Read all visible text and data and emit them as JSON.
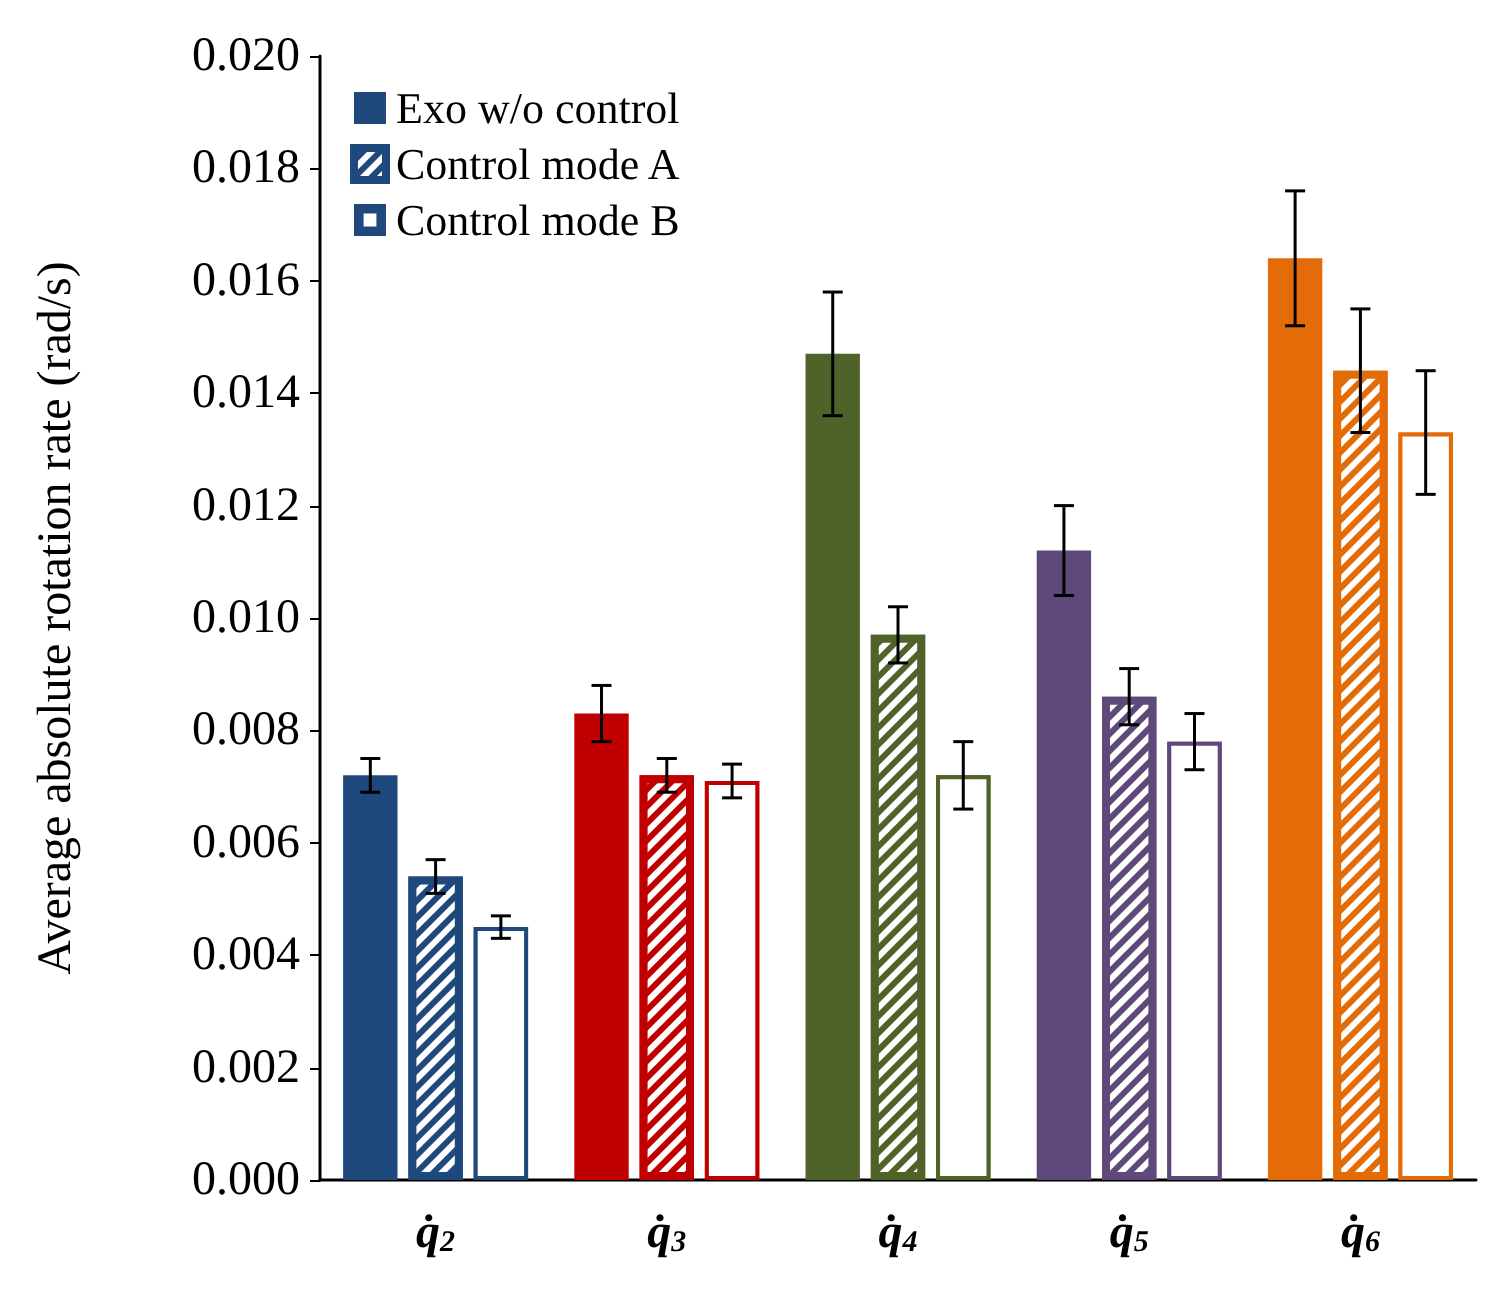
{
  "chart_data": {
    "type": "bar",
    "ylabel": "Average absolute rotation rate (rad/s)",
    "categories": [
      "q̇$_{2}$",
      "q̇$_{3}$",
      "q̇$_{4}$",
      "q̇$_{5}$",
      "q̇$_{6}$"
    ],
    "series": [
      {
        "name": "Exo w/o control",
        "color": "#1f497d",
        "colors": [
          "#1f497d",
          "#c00000",
          "#4f6228",
          "#5f497a",
          "#e36c09"
        ],
        "values": [
          0.0072,
          0.0083,
          0.0147,
          0.0112,
          0.0164
        ],
        "errors": [
          0.0003,
          0.0005,
          0.0011,
          0.0008,
          0.0012
        ]
      },
      {
        "name": "Control mode A",
        "color": "#1f497d",
        "colors": [
          "#1f497d",
          "#c00000",
          "#4f6228",
          "#5f497a",
          "#e36c09"
        ],
        "values": [
          0.0054,
          0.0072,
          0.0097,
          0.0086,
          0.0144
        ],
        "errors": [
          0.0003,
          0.0003,
          0.0005,
          0.0005,
          0.0011
        ]
      },
      {
        "name": "Control mode B",
        "color": "#1f497d",
        "colors": [
          "#1f497d",
          "#c00000",
          "#4f6228",
          "#5f497a",
          "#e36c09"
        ],
        "values": [
          0.0045,
          0.0071,
          0.0072,
          0.0078,
          0.0133
        ],
        "errors": [
          0.0002,
          0.0003,
          0.0006,
          0.0005,
          0.0011
        ]
      }
    ],
    "ylim": [
      0,
      0.02
    ],
    "yticks": [
      {
        "value": 0,
        "label": "0.000"
      },
      {
        "value": 0.002,
        "label": "0.002"
      },
      {
        "value": 0.004,
        "label": "0.004"
      },
      {
        "value": 0.006,
        "label": "0.006"
      },
      {
        "value": 0.008,
        "label": "0.008"
      },
      {
        "value": 0.01,
        "label": "0.010"
      },
      {
        "value": 0.012,
        "label": "0.012"
      },
      {
        "value": 0.014,
        "label": "0.014"
      },
      {
        "value": 0.016,
        "label": "0.016"
      },
      {
        "value": 0.018,
        "label": "0.018"
      },
      {
        "value": 0.02,
        "label": "0.020"
      }
    ],
    "grid": false,
    "legend": "top left"
  }
}
